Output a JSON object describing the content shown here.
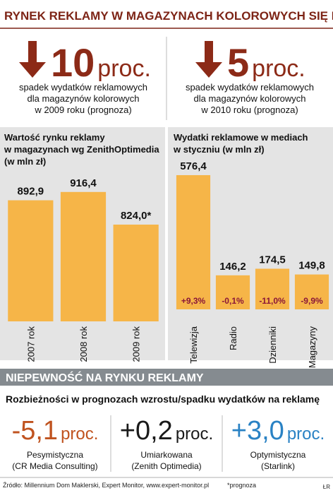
{
  "title": "RYNEK REKLAMY W MAGAZYNACH KOLOROWYCH SIĘ KURCZY...",
  "highlights": [
    {
      "value": "10",
      "unit": "proc.",
      "text": [
        "spadek wydatków reklamowych",
        "dla magazynów kolorowych",
        "w 2009 roku (prognoza)"
      ]
    },
    {
      "value": "5",
      "unit": "proc.",
      "text": [
        "spadek wydatków reklamowych",
        "dla magazynów kolorowych",
        "w 2010 roku (prognoza)"
      ]
    }
  ],
  "chart_data": [
    {
      "type": "bar",
      "title": [
        "Wartość rynku reklamy",
        "w magazynach wg ZenithOptimedia",
        "(w mln zł)"
      ],
      "categories": [
        "2007 rok",
        "2008 rok",
        "2009 rok"
      ],
      "values": [
        892.9,
        916.4,
        824.0
      ],
      "value_labels": [
        "892,9",
        "916,4",
        "824,0*"
      ],
      "ylim": [
        550,
        1000
      ],
      "color": "#f6b548"
    },
    {
      "type": "bar",
      "title": [
        "Wydatki reklamowe w mediach",
        "w styczniu (w mln zł)"
      ],
      "categories": [
        "Telewizja",
        "Radio",
        "Dzienniki",
        "Magazyny"
      ],
      "values": [
        576.4,
        146.2,
        174.5,
        149.8
      ],
      "value_labels": [
        "576,4",
        "146,2",
        "174,5",
        "149,8"
      ],
      "changes": [
        "+9,3%",
        "-0,1%",
        "-11,0%",
        "-9,9%"
      ],
      "ylim": [
        0,
        640
      ],
      "color": "#f6b548"
    }
  ],
  "section": {
    "title": "NIEPEWNOŚĆ NA RYNKU REKLAMY",
    "subtitle": "Rozbieżności w prognozach wzrostu/spadku wydatków na reklamę",
    "forecasts": [
      {
        "value": "-5,1",
        "unit": "proc.",
        "label": "Pesymistyczna",
        "source": "(CR Media Consulting)",
        "color": "#c0531f"
      },
      {
        "value": "+0,2",
        "unit": "proc.",
        "label": "Umiarkowana",
        "source": "(Zenith Optimedia)",
        "color": "#1a1a1a"
      },
      {
        "value": "+3,0",
        "unit": "proc.",
        "label": "Optymistyczna",
        "source": "(Starlink)",
        "color": "#2a82c4"
      }
    ]
  },
  "footer": {
    "source": "Źródło: Millennium Dom Maklerski, Expert Monitor, www.expert-monitor.pl",
    "note": "*prognoza",
    "credit": "ŁR"
  }
}
